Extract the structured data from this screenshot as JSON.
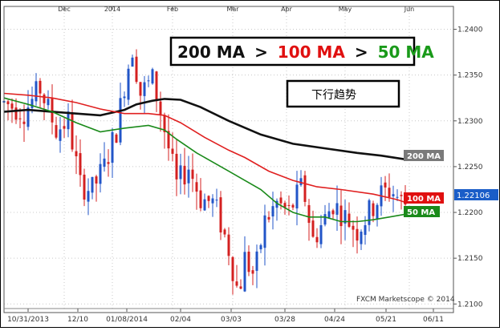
{
  "chart_data": {
    "type": "candlestick",
    "title_parts": {
      "ma200": "200 MA",
      "gt1": ">",
      "ma100": "100 MA",
      "gt2": ">",
      "ma50": "50 MA"
    },
    "annotation": "下行趋势",
    "watermark": "FXCM Marketscope © 2014",
    "x_top_labels": [
      "Dec",
      "2014",
      "Feb",
      "Mar",
      "Apr",
      "May",
      "Jun"
    ],
    "x_bottom_labels": [
      "10/31/2013",
      "12/10",
      "01/08/2014",
      "02/04",
      "03/03",
      "03/28",
      "04/24",
      "05/21",
      "06/11"
    ],
    "y_ticks": [
      "1.2400",
      "1.2350",
      "1.2300",
      "1.2250",
      "1.2200",
      "1.2150",
      "1.2100"
    ],
    "ylim": [
      1.2095,
      1.2425
    ],
    "current_price": "1.22106",
    "ma_labels": {
      "ma200": "200 MA",
      "ma100": "100 MA",
      "ma50": "50 MA"
    },
    "colors": {
      "bull": "#2255c8",
      "bear": "#d42020",
      "ma200": "#111111",
      "ma100": "#e02020",
      "ma50": "#1a8a1a",
      "title_black": "#111111",
      "title_red": "#e01010",
      "title_green": "#1a9a1a"
    },
    "ma200": [
      [
        0,
        1.231
      ],
      [
        30,
        1.2312
      ],
      [
        60,
        1.231
      ],
      [
        90,
        1.2308
      ],
      [
        120,
        1.2306
      ],
      [
        150,
        1.2312
      ],
      [
        165,
        1.2318
      ],
      [
        185,
        1.2322
      ],
      [
        200,
        1.2324
      ],
      [
        220,
        1.2323
      ],
      [
        245,
        1.2315
      ],
      [
        280,
        1.23
      ],
      [
        320,
        1.2285
      ],
      [
        360,
        1.2275
      ],
      [
        400,
        1.227
      ],
      [
        440,
        1.2265
      ],
      [
        470,
        1.2262
      ],
      [
        500,
        1.2258
      ]
    ],
    "ma100": [
      [
        0,
        1.233
      ],
      [
        30,
        1.2328
      ],
      [
        60,
        1.2325
      ],
      [
        90,
        1.232
      ],
      [
        120,
        1.2313
      ],
      [
        150,
        1.2308
      ],
      [
        180,
        1.2308
      ],
      [
        200,
        1.2306
      ],
      [
        220,
        1.2298
      ],
      [
        250,
        1.2282
      ],
      [
        280,
        1.2268
      ],
      [
        300,
        1.226
      ],
      [
        330,
        1.2245
      ],
      [
        360,
        1.2235
      ],
      [
        390,
        1.2228
      ],
      [
        420,
        1.2225
      ],
      [
        460,
        1.222
      ],
      [
        490,
        1.2214
      ],
      [
        500,
        1.2211
      ]
    ],
    "ma50": [
      [
        0,
        1.2325
      ],
      [
        30,
        1.2318
      ],
      [
        60,
        1.231
      ],
      [
        90,
        1.2298
      ],
      [
        120,
        1.2288
      ],
      [
        150,
        1.2292
      ],
      [
        180,
        1.2295
      ],
      [
        200,
        1.229
      ],
      [
        215,
        1.228
      ],
      [
        240,
        1.2265
      ],
      [
        260,
        1.2255
      ],
      [
        280,
        1.2245
      ],
      [
        300,
        1.2235
      ],
      [
        320,
        1.2225
      ],
      [
        340,
        1.221
      ],
      [
        360,
        1.22
      ],
      [
        380,
        1.2195
      ],
      [
        400,
        1.2195
      ],
      [
        420,
        1.219
      ],
      [
        440,
        1.219
      ],
      [
        460,
        1.2192
      ],
      [
        480,
        1.2195
      ],
      [
        500,
        1.2198
      ]
    ]
  }
}
